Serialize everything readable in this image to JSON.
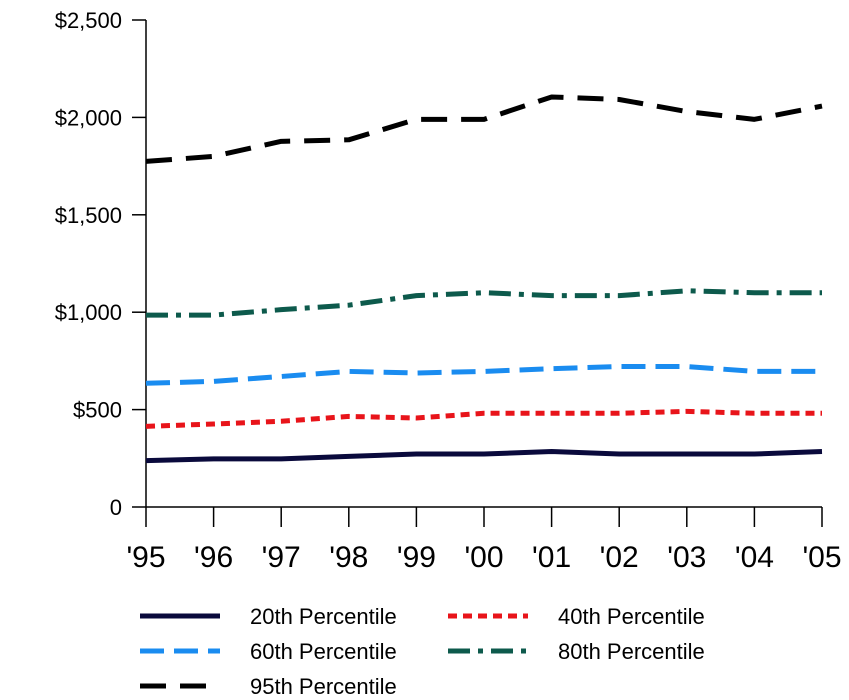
{
  "chart_data": {
    "type": "line",
    "title": "",
    "xlabel": "",
    "ylabel": "",
    "x": [
      "'95",
      "'96",
      "'97",
      "'98",
      "'99",
      "'00",
      "'01",
      "'02",
      "'03",
      "'04",
      "'05"
    ],
    "ylim": [
      0,
      2500
    ],
    "yticks": [
      0,
      500,
      1000,
      1500,
      2000,
      2500
    ],
    "ytick_labels": [
      "0",
      "$500",
      "$1,000",
      "$1,500",
      "$2,000",
      "$2,500"
    ],
    "grid": false,
    "legend": "bottom",
    "series": [
      {
        "name": "20th Percentile",
        "color": "#0a0a3c",
        "dash": "solid",
        "values": [
          238,
          247,
          247,
          260,
          272,
          272,
          285,
          272,
          272,
          272,
          285
        ]
      },
      {
        "name": "40th Percentile",
        "color": "#e8141a",
        "dash": "dotted",
        "values": [
          414,
          426,
          440,
          465,
          457,
          481,
          481,
          481,
          491,
          481,
          481
        ]
      },
      {
        "name": "60th Percentile",
        "color": "#1a8cf0",
        "dash": "dashed",
        "values": [
          635,
          645,
          670,
          696,
          688,
          696,
          710,
          721,
          721,
          696,
          696
        ]
      },
      {
        "name": "80th Percentile",
        "color": "#0d5a4c",
        "dash": "dashdot",
        "values": [
          985,
          985,
          1013,
          1036,
          1085,
          1100,
          1085,
          1085,
          1110,
          1100,
          1100
        ]
      },
      {
        "name": "95th Percentile",
        "color": "#000000",
        "dash": "longdash",
        "values": [
          1774,
          1800,
          1877,
          1885,
          1990,
          1990,
          2105,
          2092,
          2030,
          1990,
          2058
        ]
      }
    ]
  }
}
